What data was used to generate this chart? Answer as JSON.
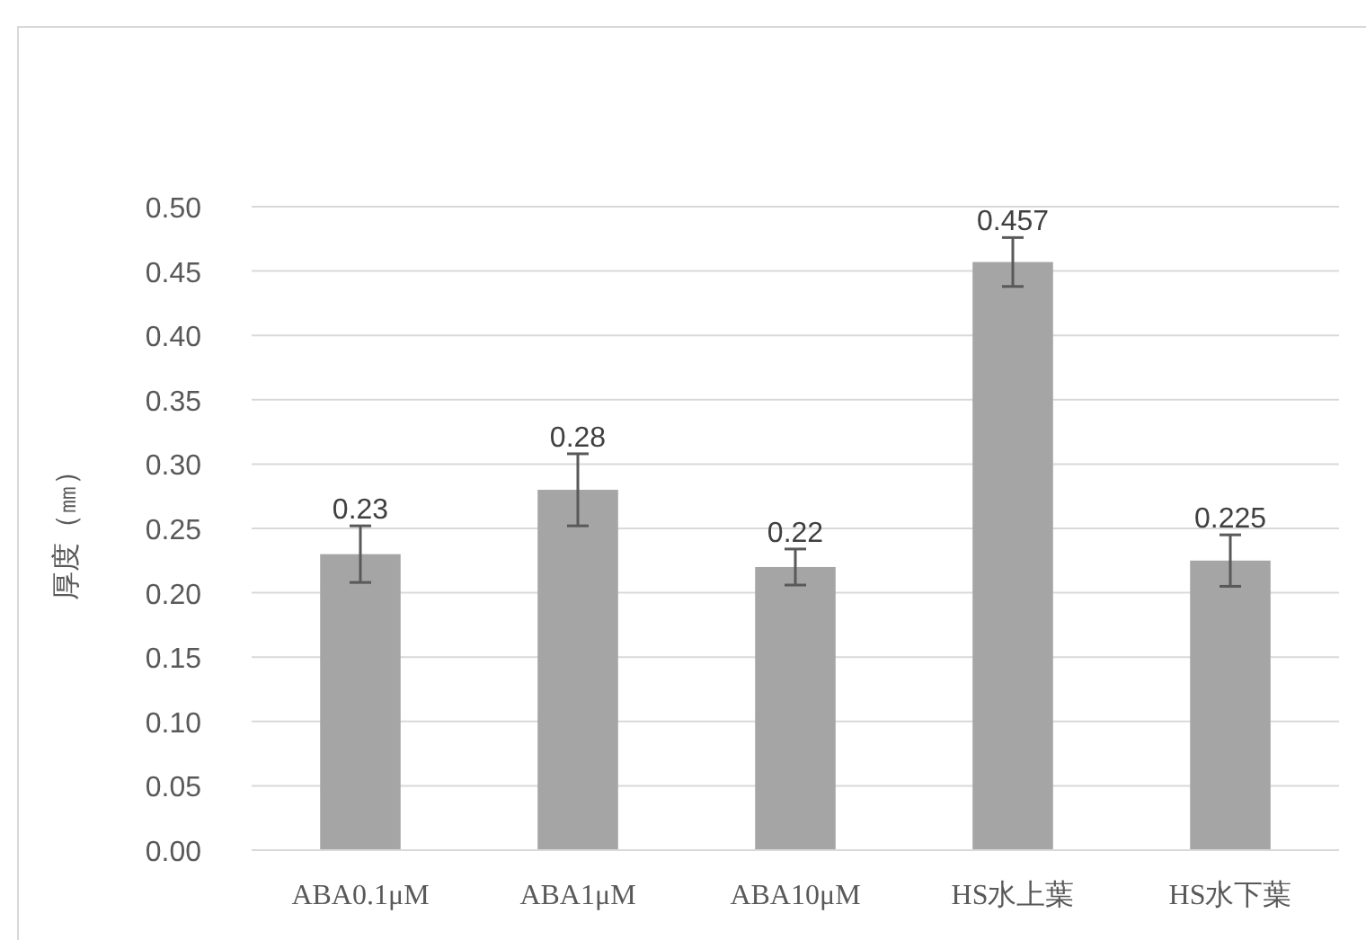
{
  "chart_data": {
    "type": "bar",
    "ylabel": "厚度（㎜）",
    "categories": [
      "ABA0.1μM",
      "ABA1μM",
      "ABA10μM",
      "HS水上葉",
      "HS水下葉"
    ],
    "values": [
      0.23,
      0.28,
      0.22,
      0.457,
      0.225
    ],
    "errors": [
      0.022,
      0.028,
      0.014,
      0.019,
      0.02
    ],
    "color": "#a5a5a5",
    "ylim": [
      0,
      0.5
    ],
    "yticks": [
      {
        "value": 0,
        "label": "0.00"
      },
      {
        "value": 0.05,
        "label": "0.05"
      },
      {
        "value": 0.1,
        "label": "0.10"
      },
      {
        "value": 0.15,
        "label": "0.15"
      },
      {
        "value": 0.2,
        "label": "0.20"
      },
      {
        "value": 0.25,
        "label": "0.25"
      },
      {
        "value": 0.3,
        "label": "0.30"
      },
      {
        "value": 0.35,
        "label": "0.35"
      },
      {
        "value": 0.4,
        "label": "0.40"
      },
      {
        "value": 0.45,
        "label": "0.45"
      },
      {
        "value": 0.5,
        "label": "0.50"
      }
    ],
    "grid": "y",
    "data_labels": true
  }
}
